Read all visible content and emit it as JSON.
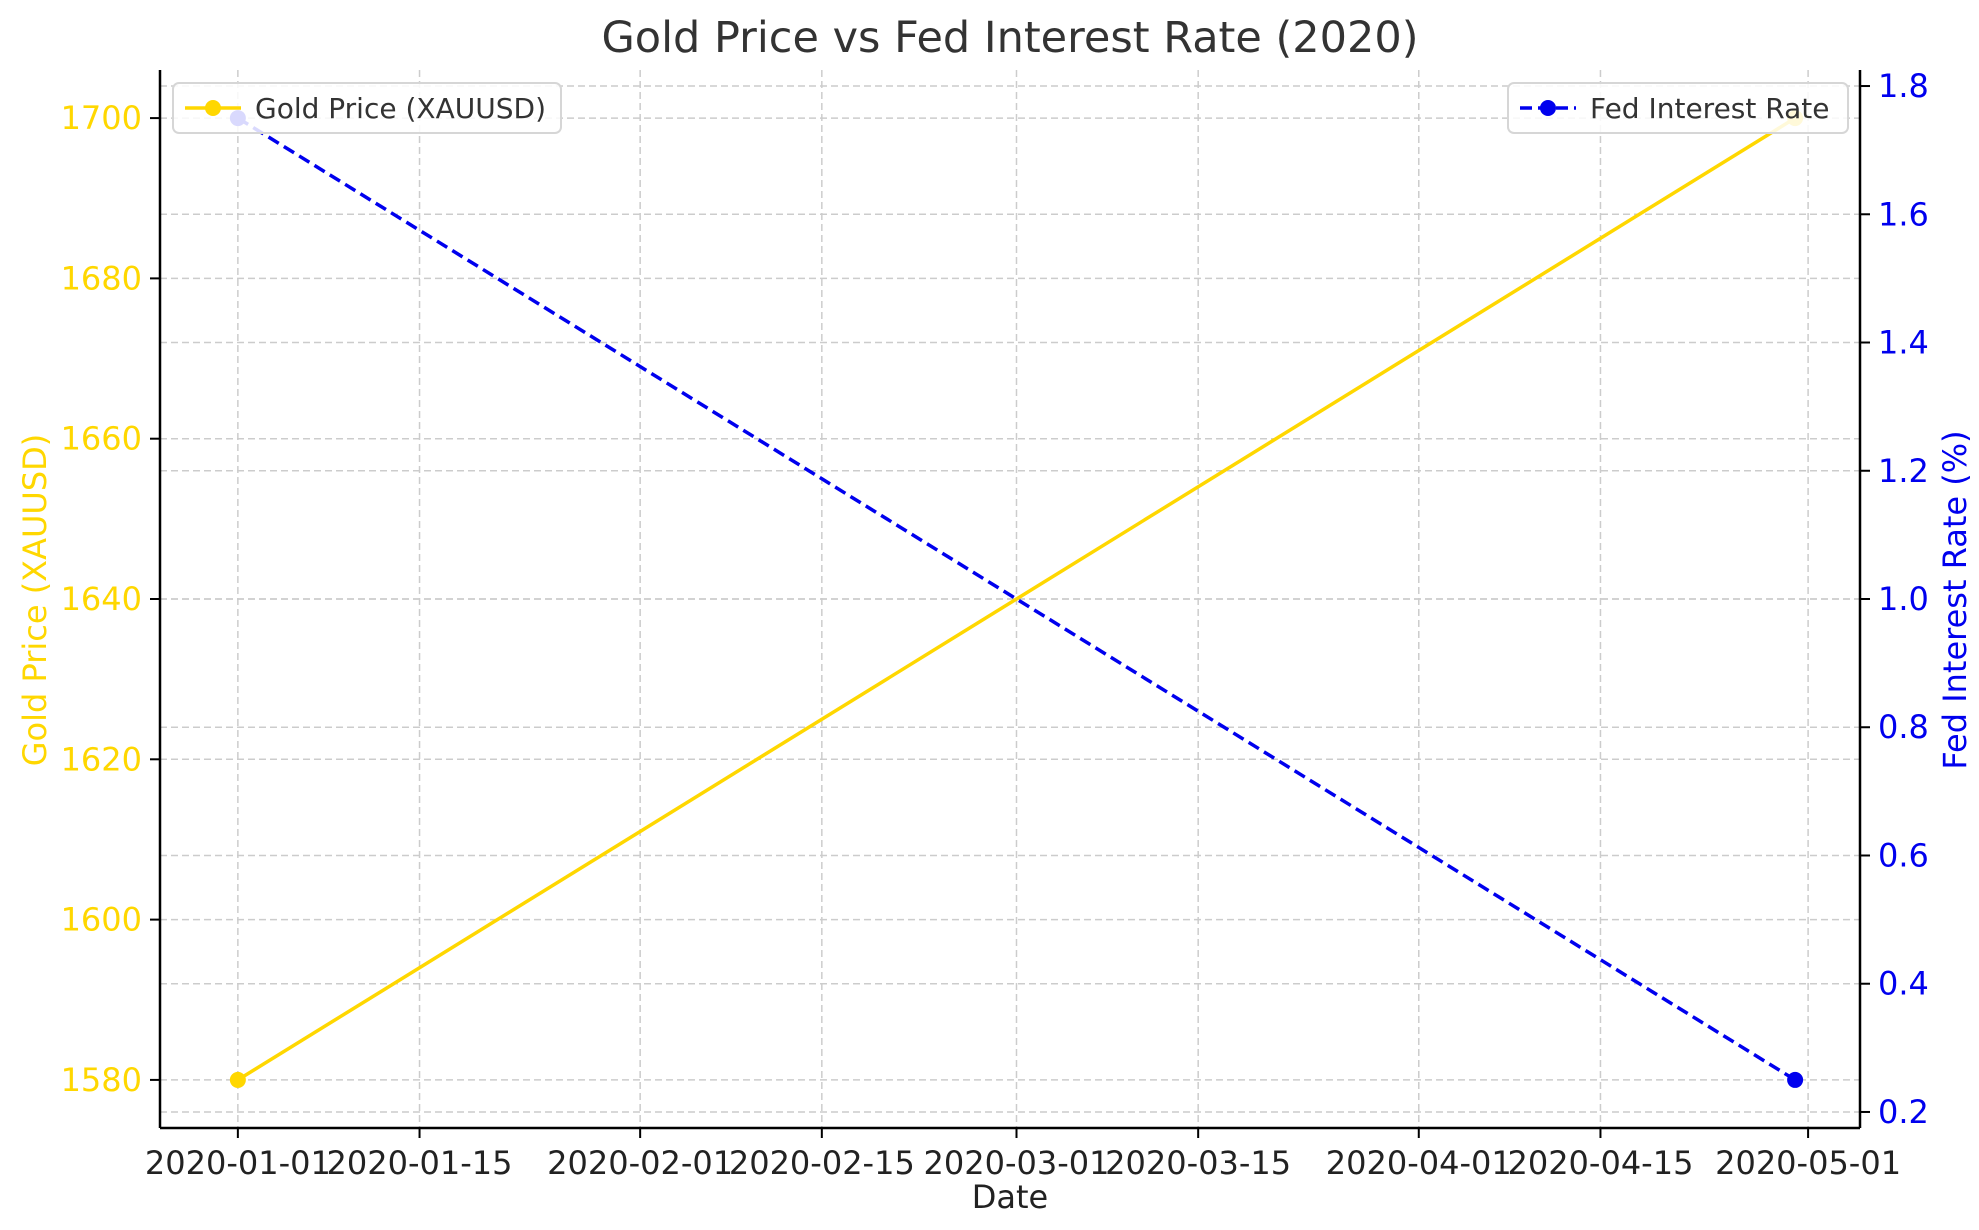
{
  "chart_data": {
    "type": "line",
    "title": "Gold Price vs Fed Interest Rate (2020)",
    "xlabel": "Date",
    "ylabel_left": "Gold Price (XAUUSD)",
    "ylabel_right": "Fed Interest Rate (%)",
    "x_ticks": [
      "2020-01-01",
      "2020-01-15",
      "2020-02-01",
      "2020-02-15",
      "2020-03-01",
      "2020-03-15",
      "2020-04-01",
      "2020-04-15",
      "2020-05-01"
    ],
    "x_range": [
      "2019-12-26",
      "2020-05-05"
    ],
    "grid": true,
    "series": [
      {
        "name": "Gold Price (XAUUSD)",
        "axis": "left",
        "color": "#FFD700",
        "line_style": "solid",
        "marker": "circle",
        "x": [
          "2020-01-01",
          "2020-04-30"
        ],
        "y": [
          1580,
          1700
        ]
      },
      {
        "name": "Fed Interest Rate",
        "axis": "right",
        "color": "#0000EE",
        "line_style": "dashed",
        "marker": "circle",
        "x": [
          "2020-01-01",
          "2020-04-30"
        ],
        "y": [
          1.75,
          0.25
        ]
      }
    ],
    "y_left": {
      "ticks": [
        1580,
        1600,
        1620,
        1640,
        1660,
        1680,
        1700
      ],
      "ylim": [
        1574,
        1706
      ],
      "color": "#FFD700"
    },
    "y_right": {
      "ticks": [
        0.2,
        0.4,
        0.6,
        0.8,
        1.0,
        1.2,
        1.4,
        1.6,
        1.8
      ],
      "tick_labels": [
        "0.2",
        "0.4",
        "0.6",
        "0.8",
        "1.0",
        "1.2",
        "1.4",
        "1.6",
        "1.8"
      ],
      "ylim": [
        0.175,
        1.825
      ],
      "color": "#0000EE"
    },
    "legends": [
      {
        "series": "Gold Price (XAUUSD)",
        "placement": "top-left"
      },
      {
        "series": "Fed Interest Rate",
        "placement": "top-right"
      }
    ]
  }
}
